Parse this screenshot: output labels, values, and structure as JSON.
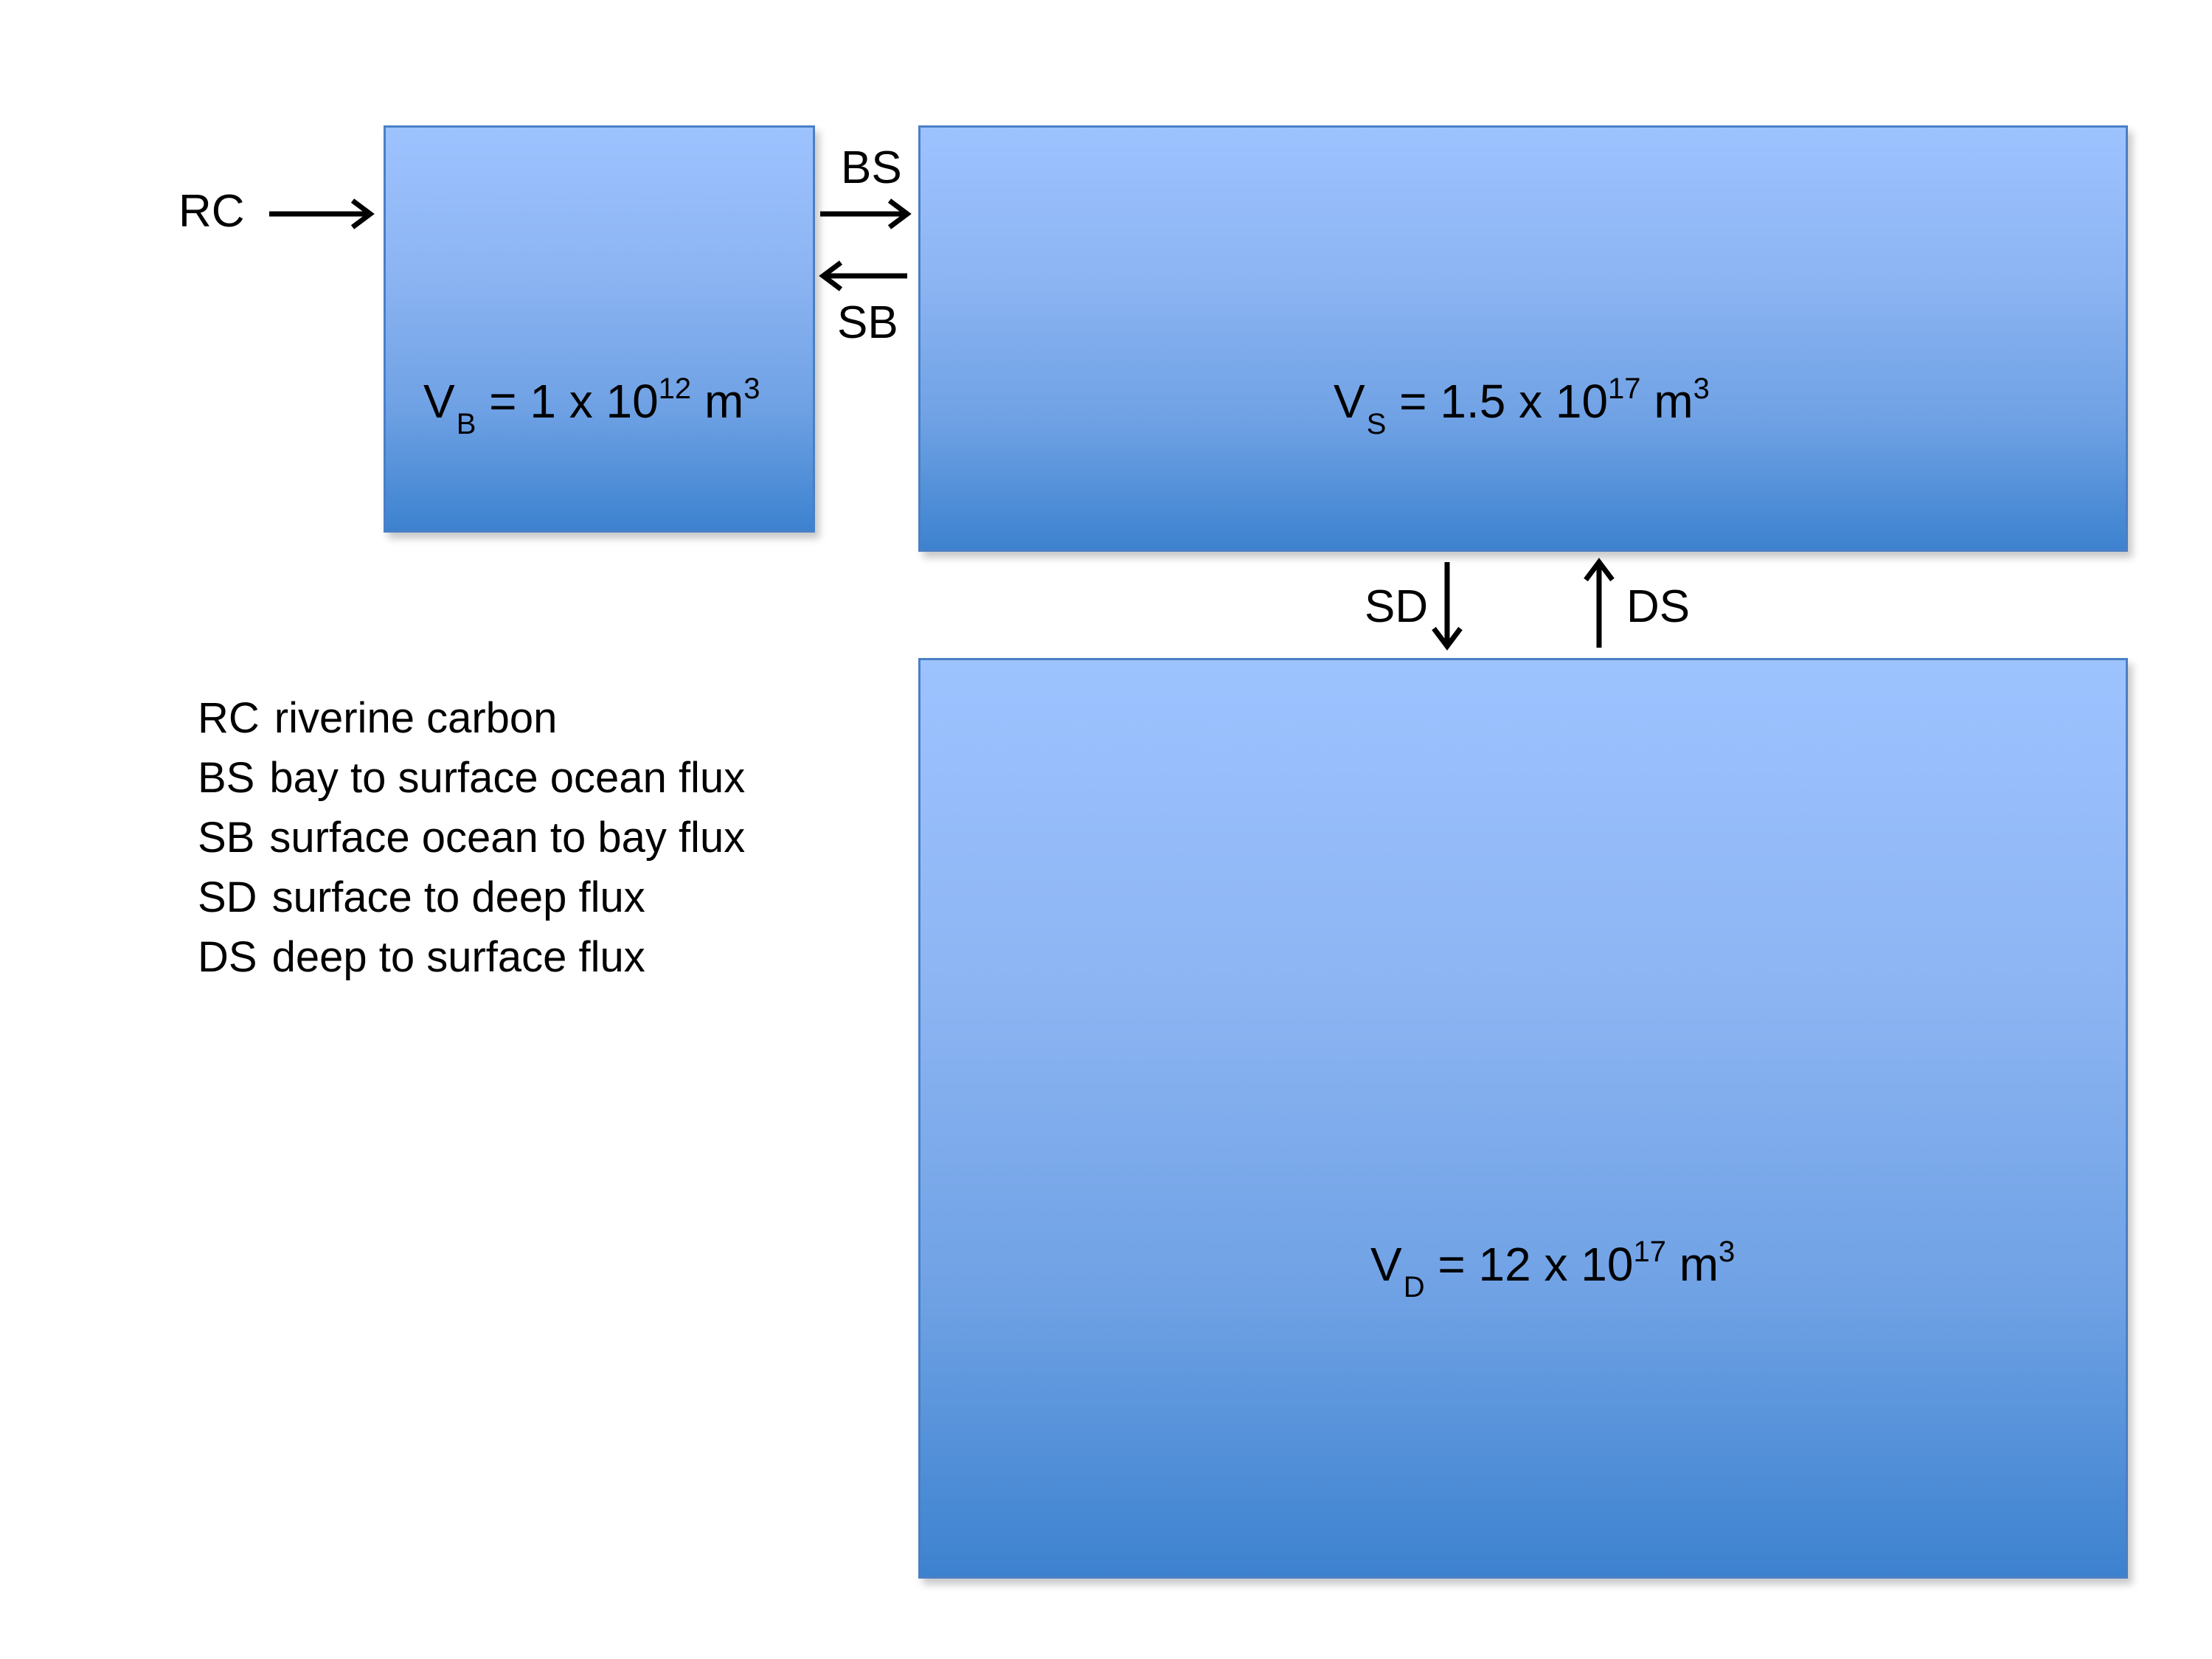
{
  "boxes": {
    "bay": {
      "v": "V",
      "sub": "B",
      "eq": " = 1 x 10",
      "exp": "12",
      "unit": " m",
      "unit_exp": "3"
    },
    "surface": {
      "v": "V",
      "sub": "S",
      "eq": " = 1.5 x 10",
      "exp": "17",
      "unit": " m",
      "unit_exp": "3"
    },
    "deep": {
      "v": "V",
      "sub": "D",
      "eq": " = 12 x 10",
      "exp": "17",
      "unit": " m",
      "unit_exp": "3"
    }
  },
  "fluxes": {
    "rc": "RC",
    "bs": "BS",
    "sb": "SB",
    "sd": "SD",
    "ds": "DS"
  },
  "legend": [
    {
      "abbr": "RC",
      "text": "riverine carbon"
    },
    {
      "abbr": "BS",
      "text": "bay to surface ocean flux"
    },
    {
      "abbr": "SB",
      "text": "surface ocean to bay flux"
    },
    {
      "abbr": "SD",
      "text": "surface to deep flux"
    },
    {
      "abbr": "DS",
      "text": "deep to surface flux"
    }
  ],
  "colors": {
    "box_top": "#9dc3ff",
    "box_bottom": "#3d82cf",
    "box_border": "#4a7fc6",
    "arrow": "#000000"
  }
}
